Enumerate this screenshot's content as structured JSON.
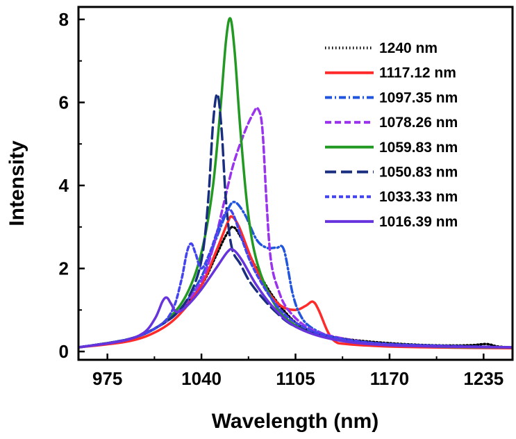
{
  "chart_data": {
    "type": "line",
    "title": "",
    "xlabel": "Wavelength (nm)",
    "ylabel": "Intensity",
    "xlim": [
      955,
      1255
    ],
    "ylim": [
      -0.2,
      8.3
    ],
    "xticks": [
      975,
      1040,
      1105,
      1170,
      1235
    ],
    "yticks": [
      0,
      2,
      4,
      6,
      8
    ],
    "grid": false,
    "legend_position": "top-right",
    "series": [
      {
        "name": "1240 nm",
        "color": "#000000",
        "dash": "dotted",
        "points": [
          [
            955,
            0.1
          ],
          [
            990,
            0.3
          ],
          [
            1010,
            0.6
          ],
          [
            1025,
            1.0
          ],
          [
            1040,
            1.6
          ],
          [
            1050,
            2.3
          ],
          [
            1057,
            2.8
          ],
          [
            1062,
            3.0
          ],
          [
            1068,
            2.7
          ],
          [
            1078,
            2.0
          ],
          [
            1090,
            1.3
          ],
          [
            1105,
            0.7
          ],
          [
            1120,
            0.45
          ],
          [
            1140,
            0.3
          ],
          [
            1170,
            0.2
          ],
          [
            1200,
            0.15
          ],
          [
            1225,
            0.15
          ],
          [
            1237,
            0.18
          ],
          [
            1245,
            0.12
          ],
          [
            1255,
            0.1
          ]
        ]
      },
      {
        "name": "1117.12 nm",
        "color": "#ff2a2a",
        "dash": "solid",
        "points": [
          [
            955,
            0.1
          ],
          [
            990,
            0.25
          ],
          [
            1010,
            0.5
          ],
          [
            1025,
            0.9
          ],
          [
            1040,
            1.6
          ],
          [
            1050,
            2.4
          ],
          [
            1058,
            3.1
          ],
          [
            1061,
            3.25
          ],
          [
            1066,
            3.0
          ],
          [
            1075,
            2.2
          ],
          [
            1085,
            1.5
          ],
          [
            1095,
            1.1
          ],
          [
            1105,
            1.0
          ],
          [
            1112,
            1.1
          ],
          [
            1117,
            1.2
          ],
          [
            1121,
            1.0
          ],
          [
            1127,
            0.5
          ],
          [
            1132,
            0.25
          ],
          [
            1140,
            0.18
          ],
          [
            1170,
            0.12
          ],
          [
            1200,
            0.1
          ],
          [
            1255,
            0.08
          ]
        ]
      },
      {
        "name": "1097.35 nm",
        "color": "#2255dd",
        "dash": "dashdot",
        "points": [
          [
            955,
            0.1
          ],
          [
            990,
            0.3
          ],
          [
            1010,
            0.6
          ],
          [
            1025,
            1.0
          ],
          [
            1040,
            1.8
          ],
          [
            1050,
            2.7
          ],
          [
            1058,
            3.4
          ],
          [
            1063,
            3.6
          ],
          [
            1070,
            3.3
          ],
          [
            1078,
            2.7
          ],
          [
            1085,
            2.5
          ],
          [
            1092,
            2.5
          ],
          [
            1097,
            2.45
          ],
          [
            1103,
            1.4
          ],
          [
            1108,
            0.9
          ],
          [
            1115,
            0.6
          ],
          [
            1130,
            0.35
          ],
          [
            1150,
            0.22
          ],
          [
            1200,
            0.12
          ],
          [
            1255,
            0.1
          ]
        ]
      },
      {
        "name": "1078.26 nm",
        "color": "#9933ee",
        "dash": "dash",
        "points": [
          [
            955,
            0.1
          ],
          [
            990,
            0.3
          ],
          [
            1010,
            0.6
          ],
          [
            1025,
            1.0
          ],
          [
            1040,
            1.7
          ],
          [
            1048,
            2.5
          ],
          [
            1055,
            3.5
          ],
          [
            1062,
            4.5
          ],
          [
            1070,
            5.3
          ],
          [
            1076,
            5.75
          ],
          [
            1079,
            5.85
          ],
          [
            1082,
            5.4
          ],
          [
            1085,
            3.6
          ],
          [
            1088,
            2.2
          ],
          [
            1093,
            1.5
          ],
          [
            1100,
            1.0
          ],
          [
            1115,
            0.55
          ],
          [
            1140,
            0.3
          ],
          [
            1180,
            0.15
          ],
          [
            1255,
            0.1
          ]
        ]
      },
      {
        "name": "1059.83 nm",
        "color": "#229922",
        "dash": "solid",
        "points": [
          [
            955,
            0.1
          ],
          [
            990,
            0.3
          ],
          [
            1010,
            0.6
          ],
          [
            1025,
            1.1
          ],
          [
            1035,
            1.8
          ],
          [
            1042,
            2.7
          ],
          [
            1048,
            4.0
          ],
          [
            1053,
            5.8
          ],
          [
            1057,
            7.5
          ],
          [
            1060,
            8.02
          ],
          [
            1063,
            7.2
          ],
          [
            1067,
            5.3
          ],
          [
            1072,
            3.4
          ],
          [
            1078,
            2.2
          ],
          [
            1088,
            1.3
          ],
          [
            1100,
            0.75
          ],
          [
            1120,
            0.4
          ],
          [
            1150,
            0.22
          ],
          [
            1200,
            0.12
          ],
          [
            1255,
            0.1
          ]
        ]
      },
      {
        "name": "1050.83 nm",
        "color": "#1a2e80",
        "dash": "longdash",
        "points": [
          [
            955,
            0.1
          ],
          [
            990,
            0.3
          ],
          [
            1010,
            0.6
          ],
          [
            1025,
            1.0
          ],
          [
            1035,
            1.6
          ],
          [
            1041,
            2.4
          ],
          [
            1045,
            3.8
          ],
          [
            1048,
            5.5
          ],
          [
            1051,
            6.2
          ],
          [
            1054,
            5.3
          ],
          [
            1057,
            3.6
          ],
          [
            1061,
            2.5
          ],
          [
            1067,
            2.1
          ],
          [
            1075,
            1.6
          ],
          [
            1090,
            1.0
          ],
          [
            1105,
            0.6
          ],
          [
            1130,
            0.35
          ],
          [
            1170,
            0.18
          ],
          [
            1255,
            0.1
          ]
        ]
      },
      {
        "name": "1033.33 nm",
        "color": "#4444ee",
        "dash": "shortdash",
        "points": [
          [
            955,
            0.1
          ],
          [
            990,
            0.3
          ],
          [
            1010,
            0.6
          ],
          [
            1020,
            1.0
          ],
          [
            1026,
            1.7
          ],
          [
            1030,
            2.4
          ],
          [
            1033,
            2.6
          ],
          [
            1036,
            2.35
          ],
          [
            1040,
            2.0
          ],
          [
            1046,
            2.4
          ],
          [
            1052,
            3.0
          ],
          [
            1058,
            3.4
          ],
          [
            1062,
            3.3
          ],
          [
            1068,
            2.7
          ],
          [
            1076,
            2.0
          ],
          [
            1090,
            1.2
          ],
          [
            1105,
            0.7
          ],
          [
            1130,
            0.35
          ],
          [
            1170,
            0.18
          ],
          [
            1255,
            0.1
          ]
        ]
      },
      {
        "name": "1016.39 nm",
        "color": "#6633dd",
        "dash": "solid",
        "points": [
          [
            955,
            0.1
          ],
          [
            985,
            0.25
          ],
          [
            1000,
            0.45
          ],
          [
            1008,
            0.8
          ],
          [
            1013,
            1.2
          ],
          [
            1016,
            1.3
          ],
          [
            1019,
            1.15
          ],
          [
            1023,
            0.95
          ],
          [
            1030,
            1.1
          ],
          [
            1040,
            1.5
          ],
          [
            1050,
            2.0
          ],
          [
            1058,
            2.4
          ],
          [
            1062,
            2.45
          ],
          [
            1068,
            2.2
          ],
          [
            1078,
            1.6
          ],
          [
            1090,
            1.05
          ],
          [
            1105,
            0.6
          ],
          [
            1130,
            0.3
          ],
          [
            1170,
            0.15
          ],
          [
            1255,
            0.1
          ]
        ]
      }
    ]
  }
}
